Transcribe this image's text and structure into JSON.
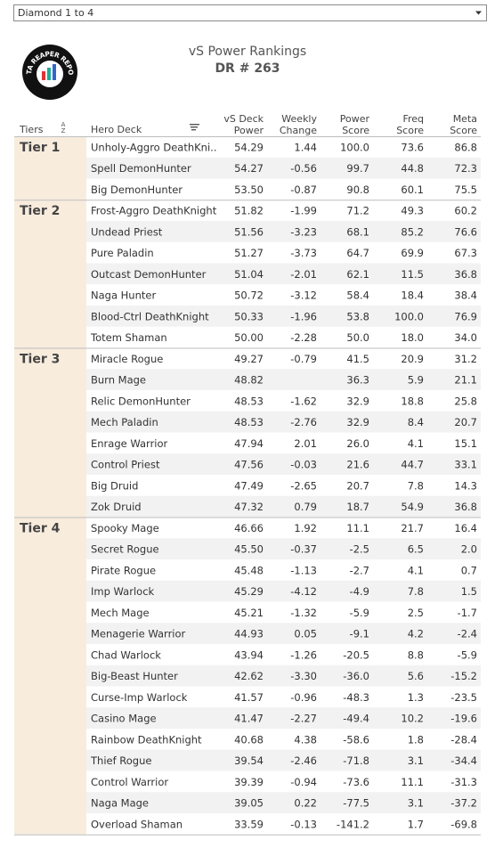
{
  "filter": {
    "selected": "Diamond 1 to 4"
  },
  "logo": {
    "text": "DATA REAPER REPORT"
  },
  "header": {
    "title": "vS Power Rankings",
    "subtitle": "DR # 263"
  },
  "table": {
    "columns": [
      {
        "lines": [
          "Tiers"
        ]
      },
      {
        "lines": [
          "Hero Deck"
        ]
      },
      {
        "lines": [
          "vS Deck",
          "Power"
        ]
      },
      {
        "lines": [
          "Weekly",
          "Change"
        ]
      },
      {
        "lines": [
          "Power",
          "Score"
        ]
      },
      {
        "lines": [
          "Freq",
          "Score"
        ]
      },
      {
        "lines": [
          "Meta",
          "Score"
        ]
      }
    ],
    "sort_icon": [
      "A",
      "Z"
    ],
    "tiers": [
      {
        "label": "Tier 1",
        "rows": [
          [
            "Unholy-Aggro DeathKni..",
            "54.29",
            "1.44",
            "100.0",
            "73.6",
            "86.8"
          ],
          [
            "Spell DemonHunter",
            "54.27",
            "-0.56",
            "99.7",
            "44.8",
            "72.3"
          ],
          [
            "Big DemonHunter",
            "53.50",
            "-0.87",
            "90.8",
            "60.1",
            "75.5"
          ]
        ]
      },
      {
        "label": "Tier 2",
        "rows": [
          [
            "Frost-Aggro DeathKnight",
            "51.82",
            "-1.99",
            "71.2",
            "49.3",
            "60.2"
          ],
          [
            "Undead Priest",
            "51.56",
            "-3.23",
            "68.1",
            "85.2",
            "76.6"
          ],
          [
            "Pure Paladin",
            "51.27",
            "-3.73",
            "64.7",
            "69.9",
            "67.3"
          ],
          [
            "Outcast DemonHunter",
            "51.04",
            "-2.01",
            "62.1",
            "11.5",
            "36.8"
          ],
          [
            "Naga Hunter",
            "50.72",
            "-3.12",
            "58.4",
            "18.4",
            "38.4"
          ],
          [
            "Blood-Ctrl DeathKnight",
            "50.33",
            "-1.96",
            "53.8",
            "100.0",
            "76.9"
          ],
          [
            "Totem Shaman",
            "50.00",
            "-2.28",
            "50.0",
            "18.0",
            "34.0"
          ]
        ]
      },
      {
        "label": "Tier 3",
        "rows": [
          [
            "Miracle Rogue",
            "49.27",
            "-0.79",
            "41.5",
            "20.9",
            "31.2"
          ],
          [
            "Burn Mage",
            "48.82",
            null,
            "36.3",
            "5.9",
            "21.1"
          ],
          [
            "Relic DemonHunter",
            "48.53",
            "-1.62",
            "32.9",
            "18.8",
            "25.8"
          ],
          [
            "Mech Paladin",
            "48.53",
            "-2.76",
            "32.9",
            "8.4",
            "20.7"
          ],
          [
            "Enrage Warrior",
            "47.94",
            "2.01",
            "26.0",
            "4.1",
            "15.1"
          ],
          [
            "Control Priest",
            "47.56",
            "-0.03",
            "21.6",
            "44.7",
            "33.1"
          ],
          [
            "Big Druid",
            "47.49",
            "-2.65",
            "20.7",
            "7.8",
            "14.3"
          ],
          [
            "Zok Druid",
            "47.32",
            "0.79",
            "18.7",
            "54.9",
            "36.8"
          ]
        ]
      },
      {
        "label": "Tier 4",
        "rows": [
          [
            "Spooky Mage",
            "46.66",
            "1.92",
            "11.1",
            "21.7",
            "16.4"
          ],
          [
            "Secret Rogue",
            "45.50",
            "-0.37",
            "-2.5",
            "6.5",
            "2.0"
          ],
          [
            "Pirate Rogue",
            "45.48",
            "-1.13",
            "-2.7",
            "4.1",
            "0.7"
          ],
          [
            "Imp Warlock",
            "45.29",
            "-4.12",
            "-4.9",
            "7.8",
            "1.5"
          ],
          [
            "Mech Mage",
            "45.21",
            "-1.32",
            "-5.9",
            "2.5",
            "-1.7"
          ],
          [
            "Menagerie Warrior",
            "44.93",
            "0.05",
            "-9.1",
            "4.2",
            "-2.4"
          ],
          [
            "Chad Warlock",
            "43.94",
            "-1.26",
            "-20.5",
            "8.8",
            "-5.9"
          ],
          [
            "Big-Beast Hunter",
            "42.62",
            "-3.30",
            "-36.0",
            "5.6",
            "-15.2"
          ],
          [
            "Curse-Imp Warlock",
            "41.57",
            "-0.96",
            "-48.3",
            "1.3",
            "-23.5"
          ],
          [
            "Casino Mage",
            "41.47",
            "-2.27",
            "-49.4",
            "10.2",
            "-19.6"
          ],
          [
            "Rainbow DeathKnight",
            "40.68",
            "4.38",
            "-58.6",
            "1.8",
            "-28.4"
          ],
          [
            "Thief Rogue",
            "39.54",
            "-2.46",
            "-71.8",
            "3.1",
            "-34.4"
          ],
          [
            "Control Warrior",
            "39.39",
            "-0.94",
            "-73.6",
            "11.1",
            "-31.3"
          ],
          [
            "Naga Mage",
            "39.05",
            "0.22",
            "-77.5",
            "3.1",
            "-37.2"
          ],
          [
            "Overload Shaman",
            "33.59",
            "-0.13",
            "-141.2",
            "1.7",
            "-69.8"
          ]
        ]
      }
    ]
  }
}
